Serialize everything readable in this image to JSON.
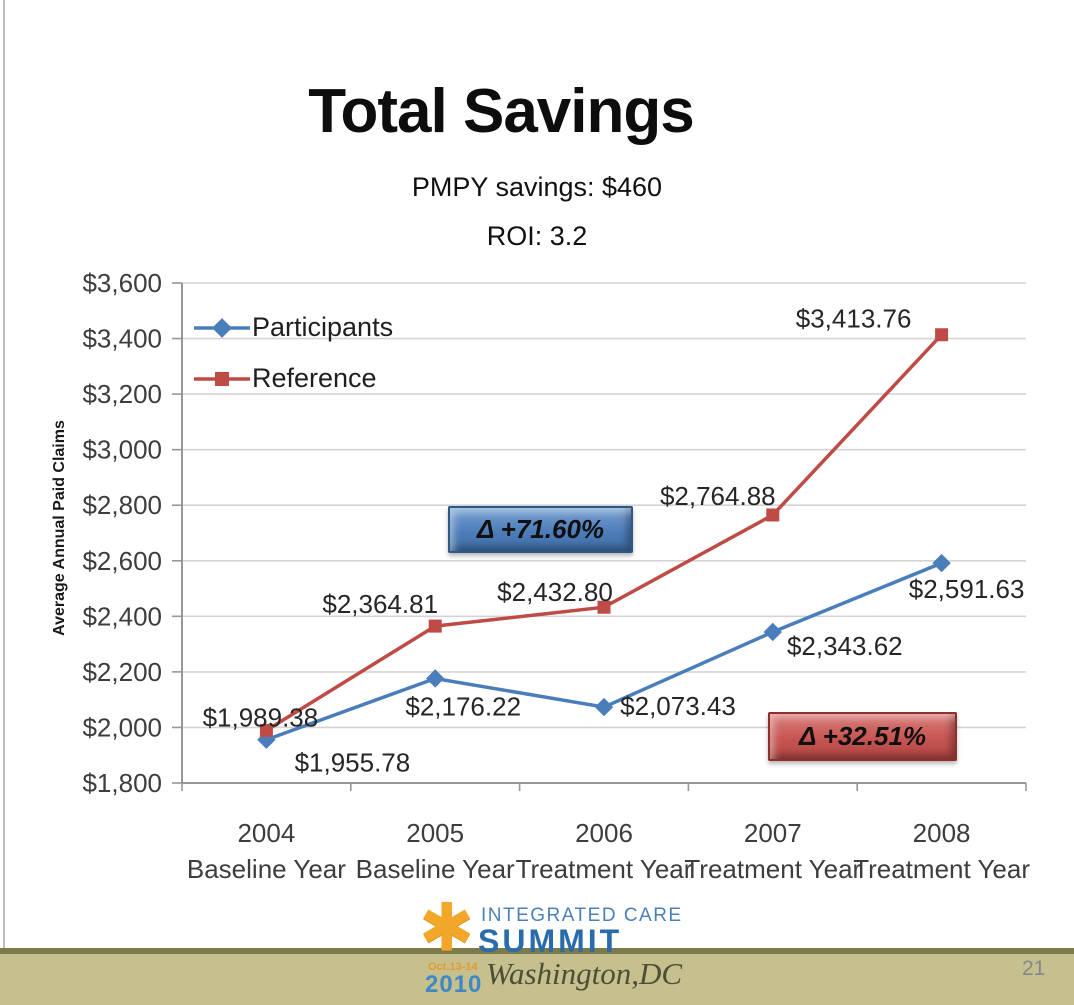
{
  "slide": {
    "title": "Total Savings",
    "subtitle_line1": "PMPY savings: $460",
    "subtitle_line2": "ROI: 3.2",
    "page_number": "21"
  },
  "chart_data": {
    "type": "line",
    "ylabel": "Average Annual Paid Claims",
    "ylim": [
      1800,
      3600
    ],
    "ytick_step": 200,
    "ytick_labels": [
      "$1,800",
      "$2,000",
      "$2,200",
      "$2,400",
      "$2,600",
      "$2,800",
      "$3,000",
      "$3,200",
      "$3,400",
      "$3,600"
    ],
    "categories": [
      "2004",
      "2005",
      "2006",
      "2007",
      "2008"
    ],
    "category_sublabels": [
      "Baseline Year",
      "Baseline Year",
      "Treatment Year",
      "Treatment Year",
      "Treatment Year"
    ],
    "grid": true,
    "legend_position": "top-left-inside",
    "series": [
      {
        "name": "Participants",
        "color": "#4a7ebb",
        "marker": "diamond",
        "values": [
          1955.78,
          2176.22,
          2073.43,
          2343.62,
          2591.63
        ],
        "data_labels": [
          "$1,955.78",
          "$2,176.22",
          "$2,073.43",
          "$2,343.62",
          "$2,591.63"
        ]
      },
      {
        "name": "Reference",
        "color": "#bf4b47",
        "marker": "square",
        "values": [
          1989.38,
          2364.81,
          2432.8,
          2764.88,
          3413.76
        ],
        "data_labels": [
          "$1,989.38",
          "$2,364.81",
          "$2,432.80",
          "$2,764.88",
          "$3,413.76"
        ]
      }
    ],
    "annotations": [
      {
        "text": "Δ +71.60%",
        "style": "blue"
      },
      {
        "text": "Δ +32.51%",
        "style": "red"
      }
    ]
  },
  "footer": {
    "logo_top": "INTEGRATED CARE",
    "logo_main": "SUMMIT",
    "logo_dates": "Oct.13-14",
    "logo_year": "2010",
    "logo_city": "Washington,DC",
    "star_icon": "✱"
  }
}
